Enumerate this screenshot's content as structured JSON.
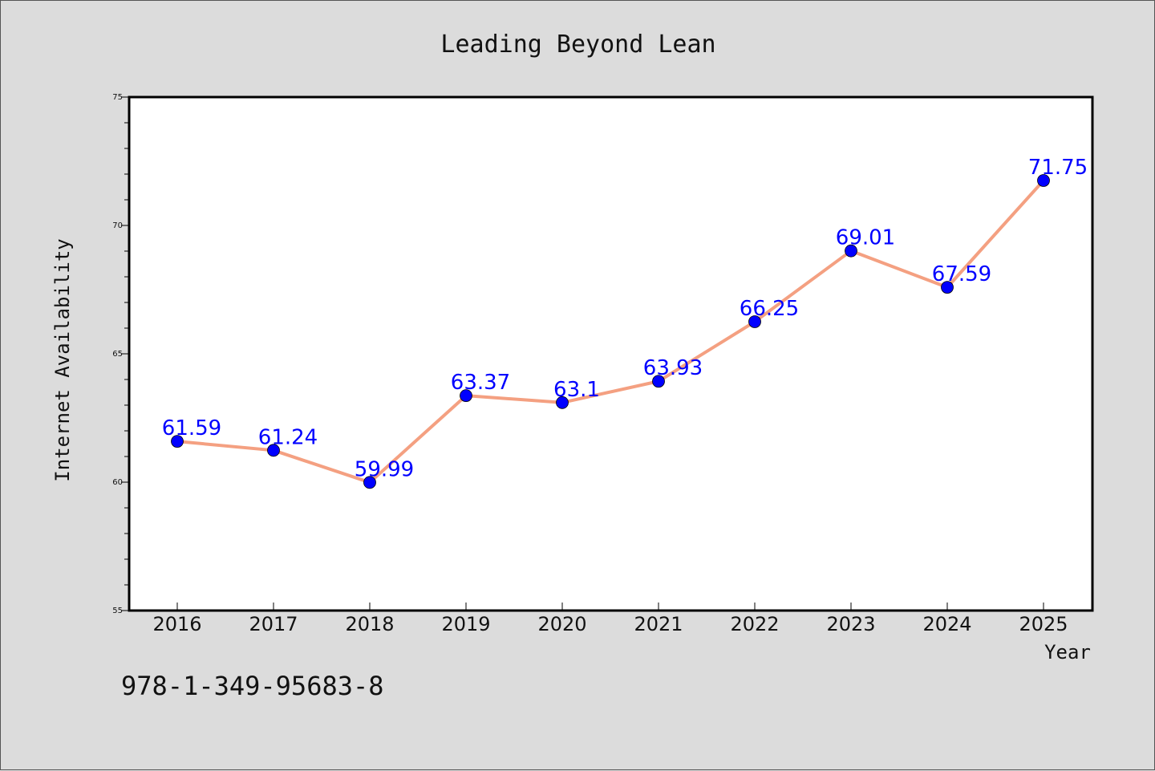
{
  "chart_data": {
    "type": "line",
    "title": "Leading Beyond Lean",
    "xlabel": "Year",
    "ylabel": "Internet Availability",
    "categories": [
      "2016",
      "2017",
      "2018",
      "2019",
      "2020",
      "2021",
      "2022",
      "2023",
      "2024",
      "2025"
    ],
    "series": [
      {
        "values": [
          61.59,
          61.24,
          59.99,
          63.37,
          63.1,
          63.93,
          66.25,
          69.01,
          67.59,
          71.75
        ],
        "data_labels": [
          "61.59",
          "61.24",
          "59.99",
          "63.37",
          "63.1",
          "63.93",
          "66.25",
          "69.01",
          "67.59",
          "71.75"
        ]
      }
    ],
    "ylim": [
      55,
      75
    ],
    "yticks": [
      "55",
      "60",
      "65",
      "70",
      "75"
    ],
    "grid": false,
    "legend": "none",
    "colors": {
      "line": "#f4a081",
      "marker": "#0000ff",
      "label": "#0000ff",
      "background": "#dcdcdc",
      "plot_background": "#ffffff"
    }
  },
  "footer": {
    "isbn": "978-1-349-95683-8"
  }
}
